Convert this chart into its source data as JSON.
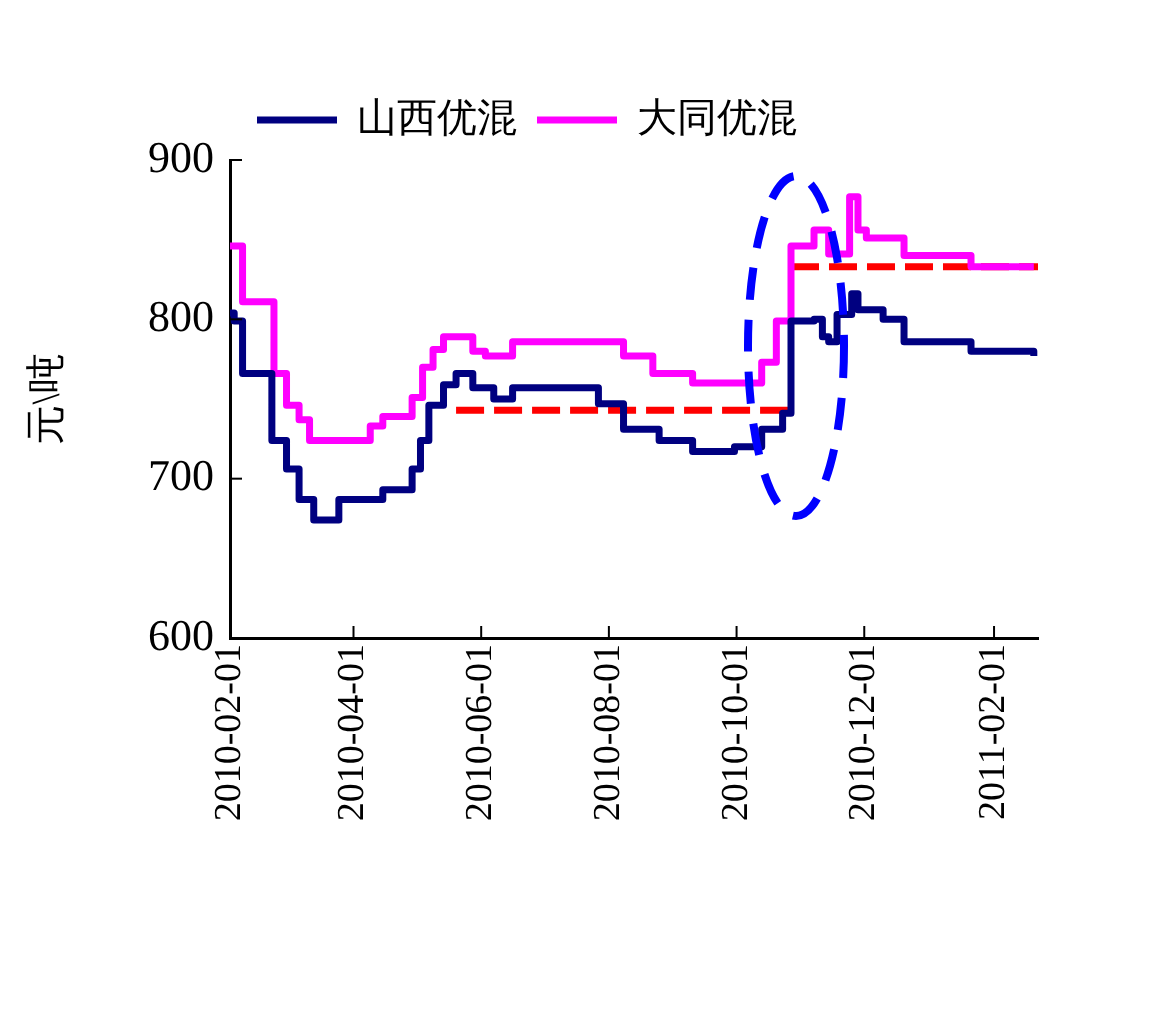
{
  "chart_data": {
    "type": "step",
    "ylabel": "元\\吨",
    "legend": "top",
    "grid": false,
    "marker": "none",
    "xlim": [
      "2010-02-01",
      "2011-02-22"
    ],
    "xticks": [
      "2010-02-01",
      "2010-04-01",
      "2010-06-01",
      "2010-08-01",
      "2010-10-01",
      "2010-12-01",
      "2011-02-01"
    ],
    "ylim": [
      600,
      900
    ],
    "yticks": [
      600,
      700,
      800,
      900
    ],
    "series": [
      {
        "name": "山西优混",
        "color": "#000080",
        "line_style": "solid",
        "x": [
          "2010-02-01",
          "2010-02-03",
          "2010-02-07",
          "2010-02-21",
          "2010-02-28",
          "2010-03-06",
          "2010-03-13",
          "2010-03-25",
          "2010-04-15",
          "2010-04-29",
          "2010-05-03",
          "2010-05-07",
          "2010-05-14",
          "2010-05-20",
          "2010-05-28",
          "2010-06-07",
          "2010-06-16",
          "2010-07-27",
          "2010-08-08",
          "2010-08-25",
          "2010-09-10",
          "2010-09-30",
          "2010-10-13",
          "2010-10-23",
          "2010-10-27",
          "2010-11-07",
          "2010-11-11",
          "2010-11-14",
          "2010-11-18",
          "2010-11-25",
          "2010-11-28",
          "2010-12-10",
          "2010-12-20",
          "2011-01-21",
          "2011-02-20"
        ],
        "values": [
          804,
          799,
          766,
          724,
          706,
          687,
          674,
          687,
          693,
          706,
          724,
          746,
          759,
          766,
          757,
          750,
          757,
          747,
          731,
          724,
          717,
          720,
          731,
          741,
          799,
          800,
          789,
          786,
          803,
          816,
          806,
          800,
          786,
          780,
          777
        ]
      },
      {
        "name": "大同优混",
        "color": "#ff00ff",
        "line_style": "solid",
        "x": [
          "2010-02-01",
          "2010-02-07",
          "2010-02-22",
          "2010-02-28",
          "2010-03-06",
          "2010-03-11",
          "2010-04-09",
          "2010-04-15",
          "2010-04-29",
          "2010-05-04",
          "2010-05-09",
          "2010-05-14",
          "2010-05-28",
          "2010-06-03",
          "2010-06-16",
          "2010-08-08",
          "2010-08-22",
          "2010-09-10",
          "2010-10-13",
          "2010-10-20",
          "2010-10-27",
          "2010-11-07",
          "2010-11-14",
          "2010-11-24",
          "2010-11-28",
          "2010-12-02",
          "2010-12-20",
          "2011-01-21",
          "2011-02-20"
        ],
        "values": [
          846,
          811,
          766,
          746,
          737,
          724,
          733,
          739,
          751,
          770,
          781,
          789,
          780,
          777,
          786,
          777,
          766,
          760,
          773,
          799,
          846,
          856,
          841,
          877,
          856,
          851,
          840,
          833,
          833
        ]
      },
      {
        "type": "line",
        "color": "#ff0000",
        "line_style": "dashed",
        "x": [
          "2010-05-20",
          "2010-10-27"
        ],
        "values": [
          743,
          743
        ]
      },
      {
        "type": "line",
        "color": "#ff0000",
        "line_style": "dashed",
        "x": [
          "2010-10-27",
          "2011-02-22"
        ],
        "values": [
          833,
          833
        ]
      }
    ]
  }
}
